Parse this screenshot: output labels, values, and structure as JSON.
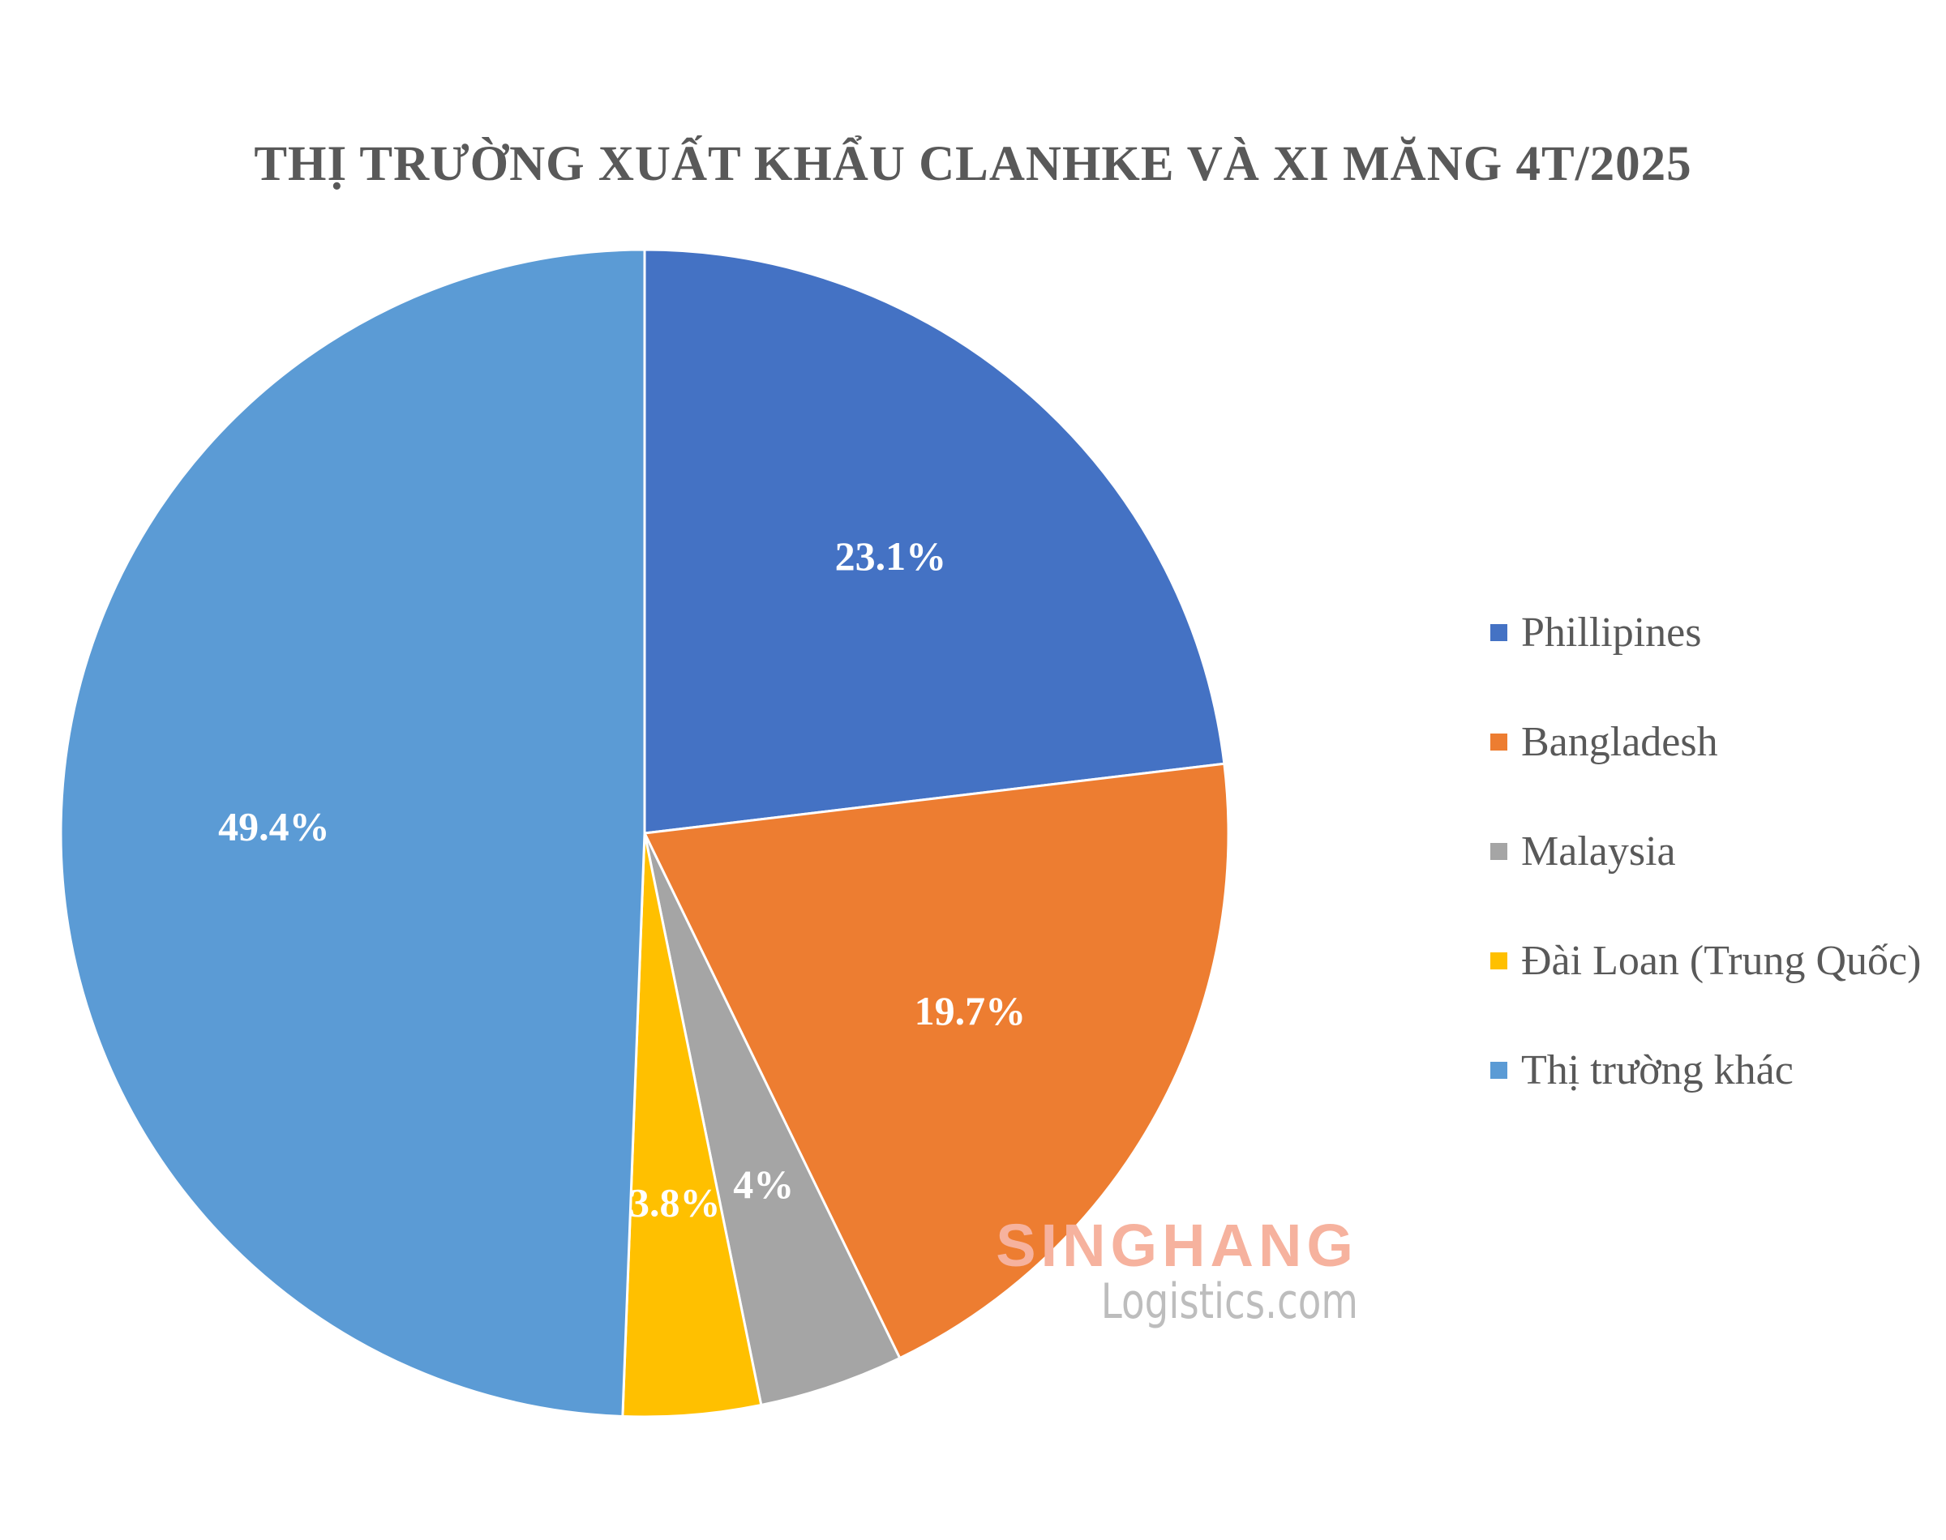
{
  "chart_data": {
    "type": "pie",
    "title": "THỊ TRƯỜNG XUẤT KHẨU CLANHKE VÀ XI MĂNG 4T/2025",
    "start_angle_deg": 0,
    "direction": "clockwise",
    "legend_position": "right",
    "slices": [
      {
        "label": "Phillipines",
        "value": 23.1,
        "display": "23.1%",
        "color": "#4472c4"
      },
      {
        "label": "Bangladesh",
        "value": 19.7,
        "display": "19.7%",
        "color": "#ed7d31"
      },
      {
        "label": "Malaysia",
        "value": 4.0,
        "display": "4%",
        "color": "#a5a5a5"
      },
      {
        "label": "Đài Loan (Trung Quốc)",
        "value": 3.8,
        "display": "3.8%",
        "color": "#ffc000"
      },
      {
        "label": "Thị trường khác",
        "value": 49.4,
        "display": "49.4%",
        "color": "#5b9bd5"
      }
    ]
  },
  "watermark": {
    "brand": "SINGHANG",
    "sub": "Logistics.com"
  }
}
